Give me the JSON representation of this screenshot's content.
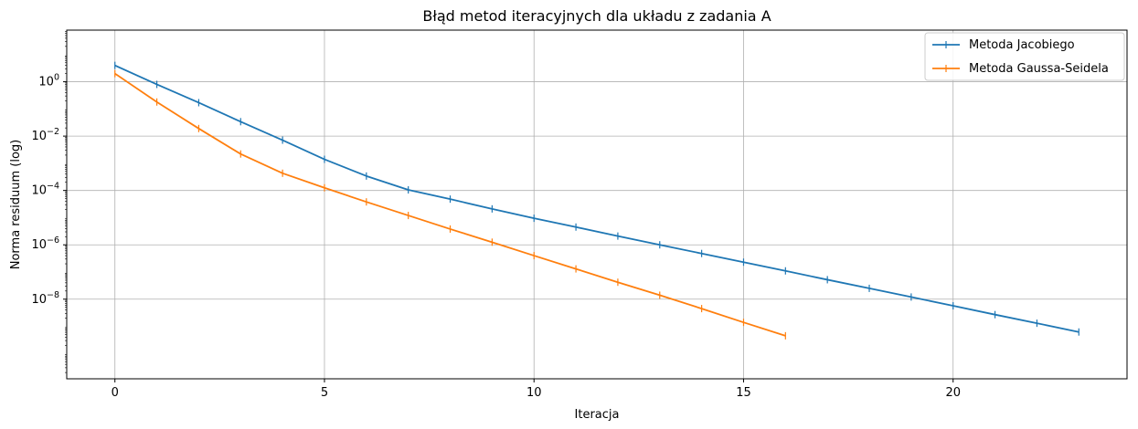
{
  "chart_data": {
    "type": "line",
    "title": "Błąd metod iteracyjnych dla układu z zadania A",
    "xlabel": "Iteracja",
    "ylabel": "Norma residuum (log)",
    "x_scale": "linear",
    "y_scale": "log",
    "xlim": [
      -1.15,
      24.15
    ],
    "ylim_log10": [
      -10.93,
      1.9
    ],
    "x_ticks": [
      0,
      5,
      10,
      15,
      20
    ],
    "x_tick_labels": [
      "0",
      "5",
      "10",
      "15",
      "20"
    ],
    "y_ticks_exp": [
      0,
      -2,
      -4,
      -6,
      -8
    ],
    "y_tick_base": "10",
    "grid": true,
    "legend_position": "top-right",
    "series": [
      {
        "name": "Metoda Jacobiego",
        "color": "#1f77b4",
        "x": [
          0,
          1,
          2,
          3,
          4,
          5,
          6,
          7,
          8,
          9,
          10,
          11,
          12,
          13,
          14,
          15,
          16,
          17,
          18,
          19,
          20,
          21,
          22,
          23
        ],
        "y": [
          4.0,
          0.8,
          0.17,
          0.034,
          0.0071,
          0.0014,
          0.00034,
          0.000105,
          4.8e-05,
          2.1e-05,
          9.5e-06,
          4.5e-06,
          2.1e-06,
          1e-06,
          4.8e-07,
          2.3e-07,
          1.1e-07,
          5.2e-08,
          2.5e-08,
          1.2e-08,
          5.7e-09,
          2.7e-09,
          1.3e-09,
          6.2e-10
        ]
      },
      {
        "name": "Metoda Gaussa-Seidela",
        "color": "#ff7f0e",
        "x": [
          0,
          1,
          2,
          3,
          4,
          5,
          6,
          7,
          8,
          9,
          10,
          11,
          12,
          13,
          14,
          15,
          16
        ],
        "y": [
          2.0,
          0.18,
          0.019,
          0.0022,
          0.00043,
          0.000125,
          3.8e-05,
          1.2e-05,
          3.8e-06,
          1.25e-06,
          4e-07,
          1.3e-07,
          4.2e-08,
          1.4e-08,
          4.5e-09,
          1.4e-09,
          4.5e-10
        ]
      }
    ]
  }
}
